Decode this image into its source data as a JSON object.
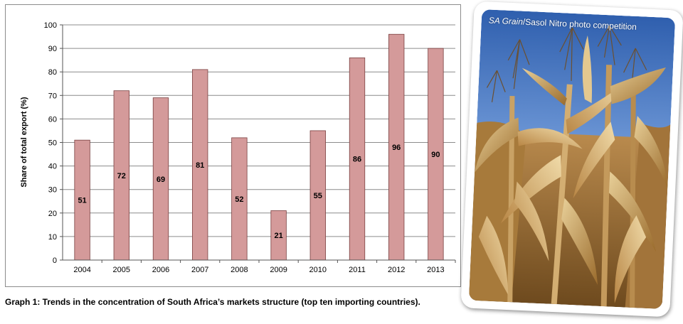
{
  "chart_data": {
    "type": "bar",
    "categories": [
      "2004",
      "2005",
      "2006",
      "2007",
      "2008",
      "2009",
      "2010",
      "2011",
      "2012",
      "2013"
    ],
    "values": [
      51,
      72,
      69,
      81,
      52,
      21,
      55,
      86,
      96,
      90
    ],
    "data_labels": [
      "51",
      "72",
      "69",
      "81",
      "52",
      "21",
      "55",
      "86",
      "96",
      "90"
    ],
    "ylabel": "Share of total export (%)",
    "ylim": [
      0,
      100
    ],
    "yticks": [
      "0",
      "10",
      "20",
      "30",
      "40",
      "50",
      "60",
      "70",
      "80",
      "90",
      "100"
    ],
    "grid": true,
    "legend": "none",
    "bar_color": "#d49a9a",
    "bar_edge_color": "#7a4040"
  },
  "caption": "Graph 1: Trends in the concentration of South Africa’s markets structure (top ten importing countries).",
  "photo": {
    "credit_italic": "SA Grain",
    "credit_rest": "/Sasol Nitro photo competition",
    "subject": "dry maize stalks against blue sky"
  }
}
